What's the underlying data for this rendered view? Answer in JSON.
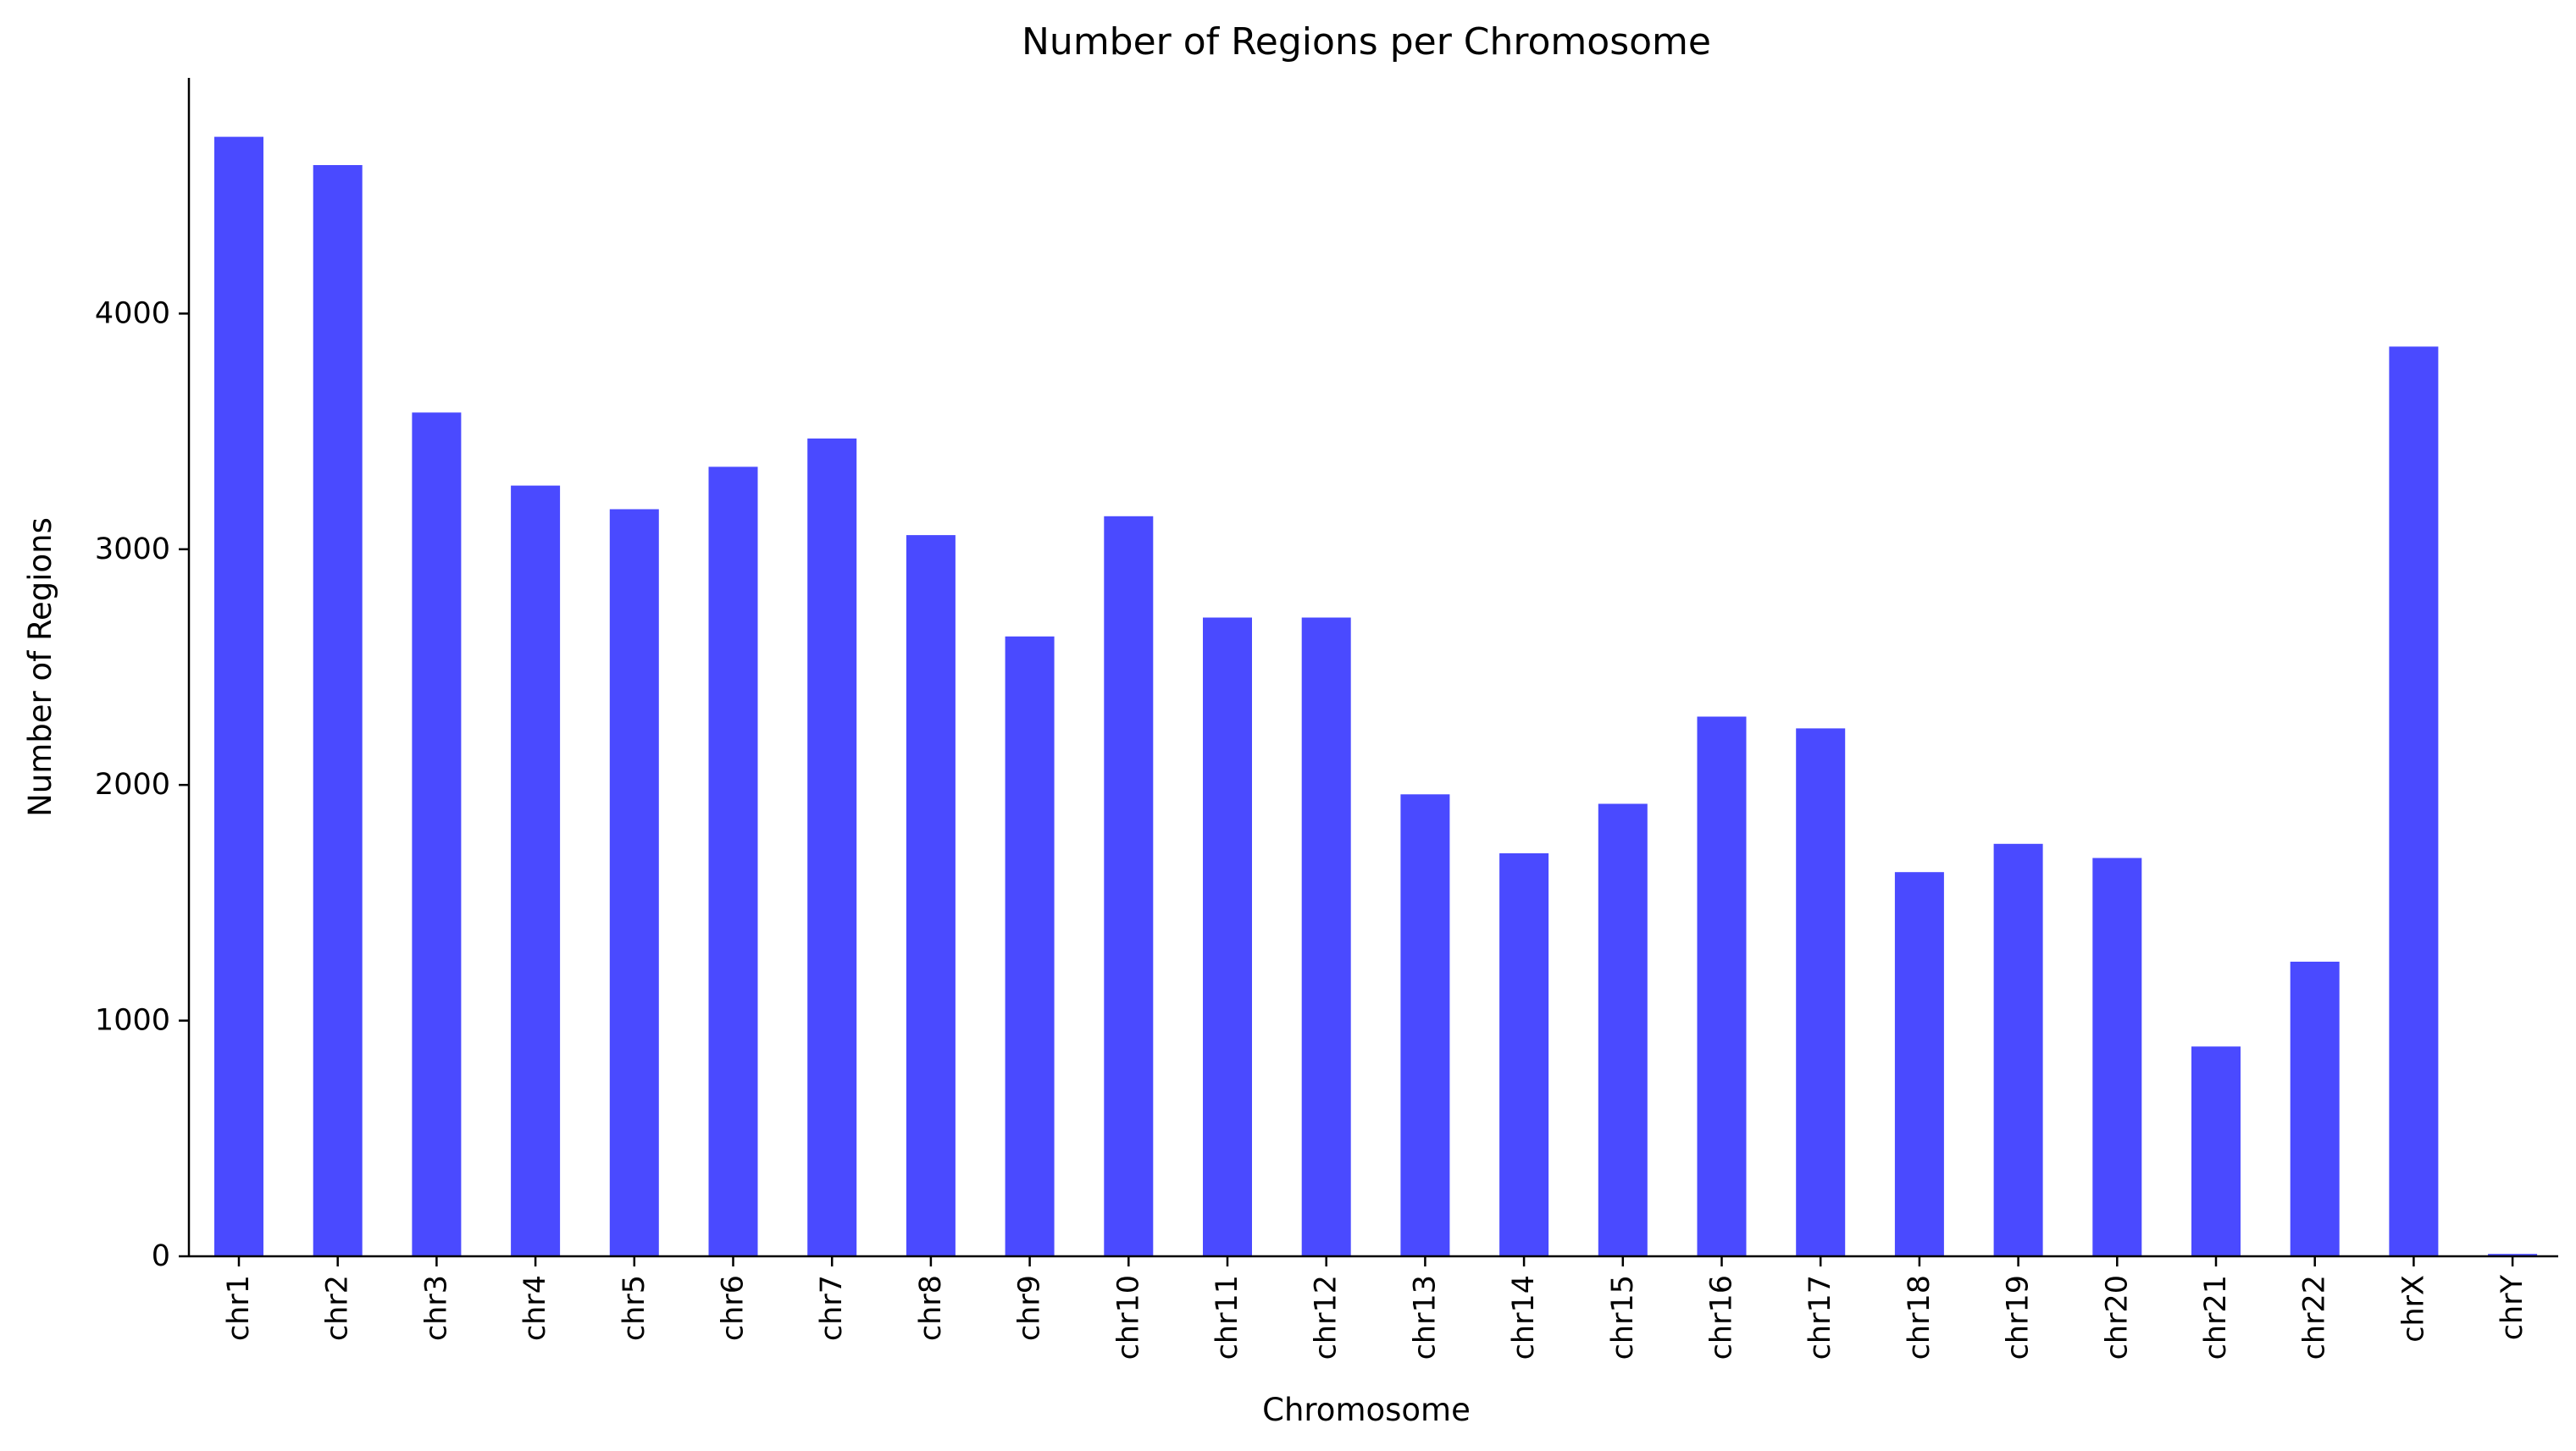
{
  "chart_data": {
    "type": "bar",
    "title": "Number of Regions per Chromosome",
    "xlabel": "Chromosome",
    "ylabel": "Number of Regions",
    "categories": [
      "chr1",
      "chr2",
      "chr3",
      "chr4",
      "chr5",
      "chr6",
      "chr7",
      "chr8",
      "chr9",
      "chr10",
      "chr11",
      "chr12",
      "chr13",
      "chr14",
      "chr15",
      "chr16",
      "chr17",
      "chr18",
      "chr19",
      "chr20",
      "chr21",
      "chr22",
      "chrX",
      "chrY"
    ],
    "values": [
      4750,
      4630,
      3580,
      3270,
      3170,
      3350,
      3470,
      3060,
      2630,
      3140,
      2710,
      2710,
      1960,
      1710,
      1920,
      2290,
      2240,
      1630,
      1750,
      1690,
      890,
      1250,
      3860,
      10
    ],
    "ylim": [
      0,
      5000
    ],
    "yticks": [
      0,
      1000,
      2000,
      3000,
      4000
    ],
    "bar_color": "#4a4aff",
    "grid": false,
    "legend": "none"
  }
}
